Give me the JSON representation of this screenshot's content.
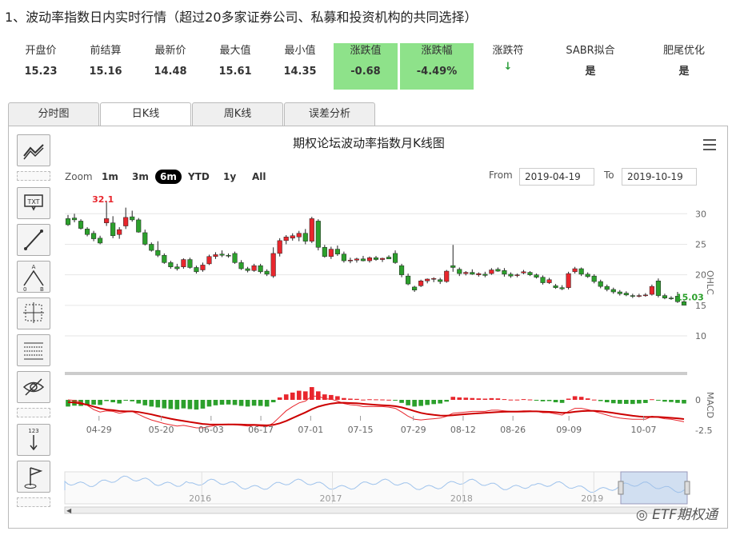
{
  "heading": "1、波动率指数日内实时行情（超过20多家证券公司、私募和投资机构的共同选择）",
  "stats": [
    {
      "label": "开盘价",
      "value": "15.23"
    },
    {
      "label": "前结算",
      "value": "15.16"
    },
    {
      "label": "最新价",
      "value": "14.48"
    },
    {
      "label": "最大值",
      "value": "15.61"
    },
    {
      "label": "最小值",
      "value": "14.35"
    },
    {
      "label": "涨跌值",
      "value": "-0.68"
    },
    {
      "label": "涨跌幅",
      "value": "-4.49%"
    },
    {
      "label": "涨跌符",
      "value": "↓"
    },
    {
      "label": "SABR拟合",
      "value": "是"
    },
    {
      "label": "肥尾优化",
      "value": "是"
    }
  ],
  "colors": {
    "up": "#e8262d",
    "down": "#2ca02c",
    "highlight": "#8ee28a",
    "navigator": "#9fc3ec"
  },
  "tabs": [
    "分时图",
    "日K线",
    "周K线",
    "误差分析"
  ],
  "active_tab": "日K线",
  "toolbar_icons": [
    "trend-line-icon",
    "text-annotation-icon",
    "line-tool-icon",
    "fibonacci-icon",
    "crosshair-icon",
    "grid-icon",
    "visibility-icon",
    "label-icon",
    "flag-icon"
  ],
  "chart": {
    "title": "期权论坛波动率指数月K线图",
    "zoom_label": "Zoom",
    "zoom_buttons": [
      "1m",
      "3m",
      "6m",
      "YTD",
      "1y",
      "All"
    ],
    "zoom_selected": "6m",
    "from_label": "From",
    "from_value": "2019-04-19",
    "to_label": "To",
    "to_value": "2019-10-19",
    "ohlc_axis_label": "OHLC",
    "macd_axis_label": "MACD",
    "max_label": "32.1",
    "last_label": "15.03",
    "navigator_years": [
      "2016",
      "2017",
      "2018",
      "2019"
    ]
  },
  "chart_data": {
    "type": "candlestick",
    "x_ticks": [
      "04-29",
      "05-20",
      "06-03",
      "06-17",
      "07-01",
      "07-15",
      "07-29",
      "08-12",
      "08-26",
      "09-09",
      "10-07"
    ],
    "ohlc_ticks": [
      10,
      15,
      20,
      25,
      30
    ],
    "macd_ticks": [
      0,
      -2.5
    ],
    "ohlc": [
      [
        29.2,
        29.8,
        28.0,
        28.2
      ],
      [
        29.3,
        30.0,
        28.6,
        29.0
      ],
      [
        28.8,
        29.1,
        27.4,
        27.6
      ],
      [
        27.5,
        27.8,
        26.3,
        26.6
      ],
      [
        26.8,
        27.2,
        25.5,
        25.9
      ],
      [
        26.0,
        26.4,
        25.0,
        25.2
      ],
      [
        28.5,
        32.1,
        28.0,
        29.2
      ],
      [
        28.5,
        29.6,
        26.0,
        26.4
      ],
      [
        26.6,
        27.8,
        25.9,
        27.4
      ],
      [
        28.0,
        31.0,
        27.5,
        29.4
      ],
      [
        29.5,
        30.5,
        28.7,
        29.0
      ],
      [
        29.0,
        29.3,
        26.9,
        27.0
      ],
      [
        26.9,
        27.4,
        24.8,
        25.0
      ],
      [
        25.0,
        25.3,
        23.8,
        24.0
      ],
      [
        24.0,
        25.5,
        22.9,
        23.2
      ],
      [
        23.2,
        23.5,
        21.8,
        22.0
      ],
      [
        22.0,
        22.3,
        21.0,
        21.3
      ],
      [
        21.3,
        21.8,
        20.7,
        21.0
      ],
      [
        21.3,
        22.7,
        21.0,
        22.5
      ],
      [
        22.5,
        22.8,
        21.0,
        21.2
      ],
      [
        21.2,
        21.5,
        20.2,
        20.5
      ],
      [
        20.8,
        22.0,
        20.5,
        21.6
      ],
      [
        21.8,
        23.3,
        21.6,
        23.0
      ],
      [
        23.0,
        23.7,
        22.6,
        23.3
      ],
      [
        23.4,
        24.0,
        22.9,
        23.2
      ],
      [
        23.2,
        23.5,
        22.8,
        23.1
      ],
      [
        23.5,
        23.8,
        21.8,
        22.0
      ],
      [
        22.0,
        22.4,
        20.8,
        21.0
      ],
      [
        21.0,
        21.3,
        20.4,
        20.7
      ],
      [
        20.7,
        21.8,
        20.5,
        21.5
      ],
      [
        21.5,
        21.8,
        20.2,
        20.5
      ],
      [
        20.6,
        20.9,
        19.8,
        20.1
      ],
      [
        19.8,
        24.5,
        19.5,
        23.5
      ],
      [
        23.5,
        26.0,
        23.0,
        25.6
      ],
      [
        25.6,
        26.5,
        25.0,
        26.2
      ],
      [
        26.0,
        26.8,
        25.6,
        26.4
      ],
      [
        26.2,
        27.2,
        25.5,
        26.8
      ],
      [
        26.8,
        27.5,
        25.0,
        25.5
      ],
      [
        25.5,
        29.5,
        25.2,
        29.2
      ],
      [
        28.8,
        29.1,
        24.0,
        24.5
      ],
      [
        24.5,
        24.9,
        22.8,
        23.0
      ],
      [
        23.0,
        24.6,
        22.6,
        24.2
      ],
      [
        24.2,
        24.8,
        23.1,
        23.4
      ],
      [
        23.4,
        23.8,
        22.0,
        22.3
      ],
      [
        22.3,
        22.8,
        21.9,
        22.4
      ],
      [
        22.4,
        22.8,
        22.0,
        22.6
      ],
      [
        22.6,
        23.1,
        22.2,
        22.3
      ],
      [
        22.3,
        23.0,
        22.0,
        22.8
      ],
      [
        22.8,
        23.1,
        22.3,
        22.5
      ],
      [
        22.5,
        22.8,
        22.1,
        22.7
      ],
      [
        22.9,
        23.2,
        22.6,
        22.6
      ],
      [
        23.5,
        24.0,
        21.8,
        22.0
      ],
      [
        21.5,
        21.8,
        19.6,
        20.0
      ],
      [
        19.8,
        20.2,
        18.3,
        18.5
      ],
      [
        18.0,
        18.2,
        17.2,
        17.5
      ],
      [
        18.2,
        19.2,
        18.0,
        19.0
      ],
      [
        19.0,
        19.4,
        18.6,
        19.3
      ],
      [
        19.3,
        19.6,
        18.8,
        19.4
      ],
      [
        19.2,
        19.5,
        18.5,
        18.9
      ],
      [
        18.9,
        20.8,
        18.7,
        20.6
      ],
      [
        21.5,
        24.9,
        20.5,
        21.2
      ],
      [
        20.9,
        21.2,
        19.8,
        20.2
      ],
      [
        20.2,
        20.6,
        19.9,
        20.4
      ],
      [
        20.4,
        20.9,
        20.0,
        20.1
      ],
      [
        20.0,
        20.4,
        19.7,
        20.2
      ],
      [
        20.1,
        20.5,
        19.6,
        19.9
      ],
      [
        20.2,
        21.1,
        20.0,
        20.8
      ],
      [
        20.9,
        21.2,
        20.5,
        20.6
      ],
      [
        20.7,
        21.1,
        19.7,
        20.1
      ],
      [
        20.1,
        20.4,
        19.5,
        19.8
      ],
      [
        19.9,
        20.2,
        19.6,
        20.0
      ],
      [
        20.3,
        20.8,
        20.1,
        20.5
      ],
      [
        20.4,
        20.6,
        19.8,
        20.0
      ],
      [
        20.0,
        20.2,
        19.4,
        19.6
      ],
      [
        19.6,
        19.9,
        18.4,
        18.7
      ],
      [
        18.7,
        19.5,
        18.5,
        19.2
      ],
      [
        18.2,
        18.5,
        17.7,
        17.9
      ],
      [
        17.9,
        18.3,
        17.5,
        17.7
      ],
      [
        17.9,
        20.5,
        17.6,
        20.2
      ],
      [
        20.5,
        21.3,
        20.2,
        21.0
      ],
      [
        21.0,
        21.2,
        19.8,
        20.1
      ],
      [
        20.1,
        20.4,
        19.5,
        19.7
      ],
      [
        19.8,
        20.1,
        18.6,
        18.9
      ],
      [
        18.9,
        19.2,
        17.8,
        18.1
      ],
      [
        18.1,
        18.4,
        17.3,
        17.6
      ],
      [
        17.6,
        17.9,
        16.9,
        17.2
      ],
      [
        17.2,
        17.5,
        16.6,
        16.9
      ],
      [
        17.0,
        17.3,
        16.5,
        16.7
      ],
      [
        16.6,
        16.9,
        16.2,
        16.5
      ],
      [
        16.5,
        16.9,
        16.3,
        16.6
      ],
      [
        16.6,
        17.0,
        16.4,
        16.7
      ],
      [
        16.8,
        18.4,
        16.6,
        18.1
      ],
      [
        19.0,
        19.4,
        16.3,
        16.6
      ],
      [
        16.6,
        16.9,
        16.0,
        16.2
      ],
      [
        16.2,
        16.5,
        15.9,
        16.1
      ],
      [
        16.5,
        17.2,
        15.4,
        15.6
      ],
      [
        15.6,
        15.8,
        15.0,
        15.03
      ]
    ],
    "macd_hist": [
      -0.55,
      -0.48,
      -0.5,
      -0.45,
      -0.4,
      -0.42,
      -0.1,
      -0.2,
      -0.3,
      -0.05,
      -0.12,
      -0.3,
      -0.45,
      -0.55,
      -0.62,
      -0.7,
      -0.75,
      -0.78,
      -0.7,
      -0.76,
      -0.8,
      -0.72,
      -0.55,
      -0.45,
      -0.4,
      -0.38,
      -0.42,
      -0.5,
      -0.55,
      -0.48,
      -0.5,
      -0.55,
      -0.2,
      0.2,
      0.45,
      0.6,
      0.75,
      0.7,
      1.05,
      0.7,
      0.45,
      0.4,
      0.3,
      0.15,
      0.1,
      0.08,
      0.02,
      0.05,
      0.04,
      0.03,
      0.01,
      -0.05,
      -0.25,
      -0.45,
      -0.55,
      -0.5,
      -0.42,
      -0.35,
      -0.3,
      -0.15,
      0.25,
      0.2,
      0.18,
      0.15,
      0.12,
      0.1,
      0.14,
      0.12,
      0.06,
      0.02,
      0.02,
      0.06,
      0.03,
      -0.02,
      -0.12,
      -0.1,
      -0.2,
      -0.25,
      0.1,
      0.3,
      0.25,
      0.12,
      0.02,
      -0.1,
      -0.2,
      -0.28,
      -0.32,
      -0.33,
      -0.34,
      -0.3,
      -0.26,
      0.05,
      -0.05,
      -0.15,
      -0.18,
      -0.25,
      -0.3
    ],
    "macd_dif": [
      0.0,
      -0.05,
      -0.2,
      -0.45,
      -0.8,
      -1.0,
      -0.9,
      -0.95,
      -1.1,
      -1.0,
      -0.95,
      -1.2,
      -1.45,
      -1.65,
      -1.8,
      -1.95,
      -2.05,
      -2.15,
      -2.1,
      -2.2,
      -2.3,
      -2.3,
      -2.2,
      -2.1,
      -2.05,
      -2.0,
      -2.05,
      -2.1,
      -2.15,
      -2.1,
      -2.15,
      -2.2,
      -1.9,
      -1.4,
      -0.9,
      -0.55,
      -0.25,
      -0.1,
      0.3,
      0.3,
      0.1,
      0.05,
      -0.1,
      -0.3,
      -0.4,
      -0.45,
      -0.55,
      -0.55,
      -0.55,
      -0.55,
      -0.6,
      -0.7,
      -1.0,
      -1.35,
      -1.6,
      -1.65,
      -1.6,
      -1.55,
      -1.5,
      -1.35,
      -1.1,
      -1.05,
      -1.0,
      -0.95,
      -0.95,
      -0.95,
      -0.85,
      -0.85,
      -0.9,
      -0.95,
      -0.95,
      -0.9,
      -0.9,
      -0.95,
      -1.05,
      -1.05,
      -1.15,
      -1.25,
      -0.95,
      -0.7,
      -0.7,
      -0.8,
      -0.95,
      -1.1,
      -1.25,
      -1.4,
      -1.5,
      -1.55,
      -1.6,
      -1.6,
      -1.6,
      -1.35,
      -1.45,
      -1.55,
      -1.6,
      -1.7,
      -1.8
    ],
    "macd_dea": [
      -0.2,
      -0.22,
      -0.3,
      -0.4,
      -0.55,
      -0.7,
      -0.8,
      -0.85,
      -0.92,
      -0.95,
      -0.95,
      -1.0,
      -1.1,
      -1.2,
      -1.32,
      -1.44,
      -1.55,
      -1.65,
      -1.74,
      -1.82,
      -1.9,
      -1.98,
      -2.02,
      -2.03,
      -2.03,
      -2.02,
      -2.02,
      -2.03,
      -2.05,
      -2.06,
      -2.08,
      -2.1,
      -2.06,
      -1.93,
      -1.74,
      -1.5,
      -1.26,
      -1.03,
      -0.77,
      -0.56,
      -0.42,
      -0.31,
      -0.25,
      -0.24,
      -0.26,
      -0.28,
      -0.33,
      -0.37,
      -0.41,
      -0.44,
      -0.47,
      -0.52,
      -0.62,
      -0.76,
      -0.93,
      -1.07,
      -1.17,
      -1.24,
      -1.29,
      -1.3,
      -1.26,
      -1.22,
      -1.18,
      -1.13,
      -1.1,
      -1.07,
      -1.03,
      -1.0,
      -0.98,
      -0.97,
      -0.97,
      -0.96,
      -0.95,
      -0.95,
      -0.97,
      -0.99,
      -1.02,
      -1.07,
      -1.05,
      -0.98,
      -0.93,
      -0.91,
      -0.91,
      -0.94,
      -1.0,
      -1.08,
      -1.16,
      -1.24,
      -1.31,
      -1.37,
      -1.41,
      -1.4,
      -1.41,
      -1.44,
      -1.48,
      -1.52,
      -1.58
    ]
  }
}
